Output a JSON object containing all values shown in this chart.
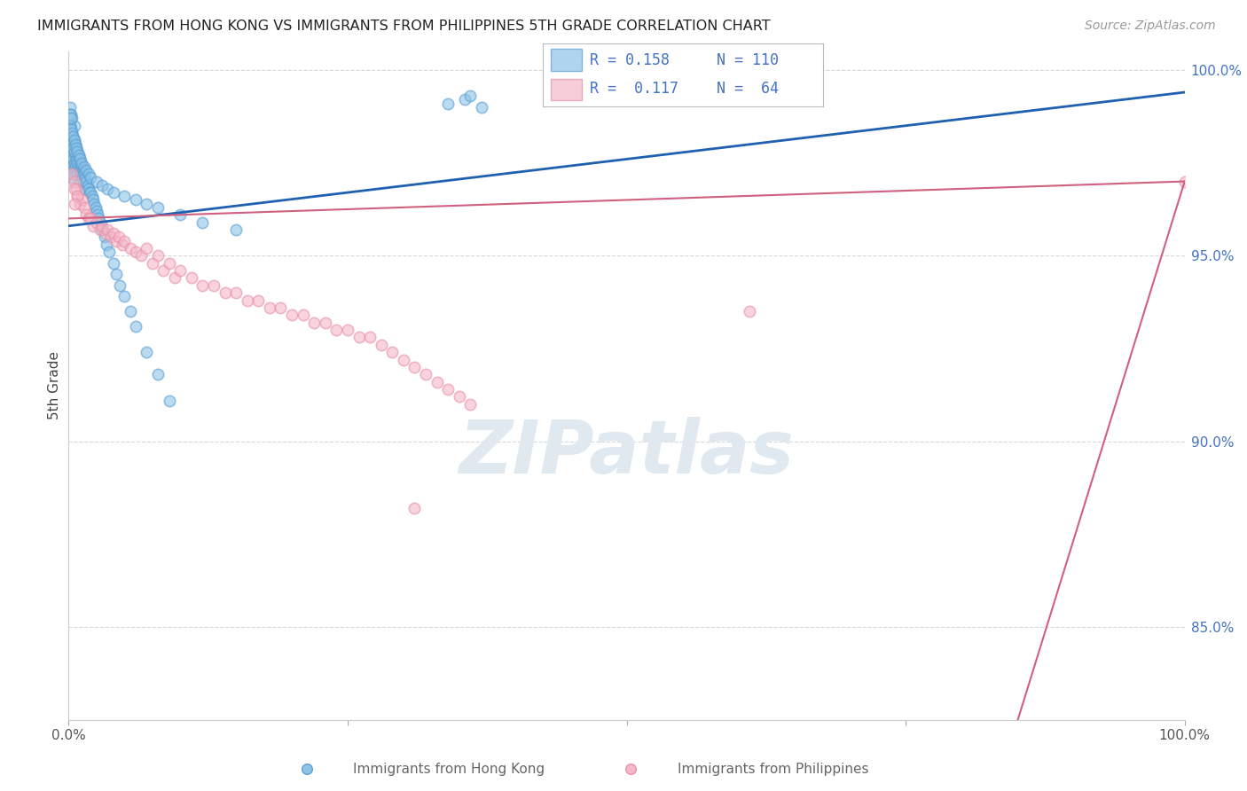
{
  "title": "IMMIGRANTS FROM HONG KONG VS IMMIGRANTS FROM PHILIPPINES 5TH GRADE CORRELATION CHART",
  "source": "Source: ZipAtlas.com",
  "ylabel": "5th Grade",
  "hk_color": "#8ec4e8",
  "ph_color": "#f5b8c8",
  "hk_edge_color": "#5a9fd4",
  "ph_edge_color": "#e890a8",
  "hk_line_color": "#2060b0",
  "ph_line_color": "#d06080",
  "right_axis_color": "#4472c4",
  "grid_color": "#d8d8d8",
  "title_color": "#222222",
  "source_color": "#999999",
  "legend_text_color": "#4472c4",
  "bottom_label_color": "#666666",
  "watermark_color": "#e0e8f0",
  "watermark_text": "ZIPatlas",
  "legend_label1": "Immigrants from Hong Kong",
  "legend_label2": "Immigrants from Philippines",
  "hk_r": "0.158",
  "hk_n": "110",
  "ph_r": "0.117",
  "ph_n": "64",
  "xlim": [
    0.0,
    1.0
  ],
  "ylim": [
    0.825,
    1.005
  ],
  "yticks": [
    0.85,
    0.9,
    0.95,
    1.0
  ],
  "ytick_labels": [
    "85.0%",
    "90.0%",
    "95.0%",
    "100.0%"
  ],
  "hk_line_x0": 0.0,
  "hk_line_x1": 1.0,
  "hk_line_y0": 0.958,
  "hk_line_y1": 0.994,
  "ph_line_x0": 0.0,
  "ph_line_x1": 1.0,
  "ph_line_y0": 0.96,
  "ph_line_y1": 0.97,
  "hk_scatter_x": [
    0.001,
    0.001,
    0.001,
    0.001,
    0.001,
    0.002,
    0.002,
    0.002,
    0.002,
    0.002,
    0.003,
    0.003,
    0.003,
    0.003,
    0.003,
    0.003,
    0.004,
    0.004,
    0.004,
    0.004,
    0.005,
    0.005,
    0.005,
    0.005,
    0.005,
    0.006,
    0.006,
    0.006,
    0.007,
    0.007,
    0.007,
    0.008,
    0.008,
    0.008,
    0.009,
    0.009,
    0.01,
    0.01,
    0.01,
    0.011,
    0.011,
    0.012,
    0.012,
    0.013,
    0.013,
    0.014,
    0.015,
    0.015,
    0.016,
    0.017,
    0.018,
    0.019,
    0.02,
    0.021,
    0.022,
    0.023,
    0.024,
    0.025,
    0.026,
    0.027,
    0.028,
    0.03,
    0.032,
    0.034,
    0.036,
    0.04,
    0.043,
    0.046,
    0.05,
    0.055,
    0.06,
    0.07,
    0.08,
    0.09,
    0.001,
    0.001,
    0.002,
    0.002,
    0.002,
    0.003,
    0.003,
    0.004,
    0.004,
    0.005,
    0.005,
    0.006,
    0.007,
    0.008,
    0.009,
    0.01,
    0.012,
    0.014,
    0.016,
    0.018,
    0.02,
    0.025,
    0.03,
    0.035,
    0.04,
    0.05,
    0.06,
    0.07,
    0.08,
    0.1,
    0.12,
    0.15,
    0.34,
    0.355,
    0.36,
    0.37
  ],
  "hk_scatter_y": [
    0.985,
    0.982,
    0.979,
    0.976,
    0.99,
    0.984,
    0.981,
    0.978,
    0.975,
    0.988,
    0.983,
    0.98,
    0.977,
    0.974,
    0.971,
    0.987,
    0.982,
    0.979,
    0.976,
    0.973,
    0.981,
    0.978,
    0.975,
    0.972,
    0.985,
    0.98,
    0.977,
    0.974,
    0.979,
    0.976,
    0.973,
    0.978,
    0.975,
    0.972,
    0.977,
    0.974,
    0.976,
    0.973,
    0.97,
    0.975,
    0.972,
    0.974,
    0.971,
    0.973,
    0.97,
    0.972,
    0.971,
    0.968,
    0.97,
    0.969,
    0.968,
    0.967,
    0.967,
    0.966,
    0.965,
    0.964,
    0.963,
    0.962,
    0.961,
    0.96,
    0.959,
    0.957,
    0.955,
    0.953,
    0.951,
    0.948,
    0.945,
    0.942,
    0.939,
    0.935,
    0.931,
    0.924,
    0.918,
    0.911,
    0.988,
    0.985,
    0.987,
    0.984,
    0.981,
    0.983,
    0.98,
    0.982,
    0.979,
    0.981,
    0.978,
    0.98,
    0.979,
    0.978,
    0.977,
    0.976,
    0.975,
    0.974,
    0.973,
    0.972,
    0.971,
    0.97,
    0.969,
    0.968,
    0.967,
    0.966,
    0.965,
    0.964,
    0.963,
    0.961,
    0.959,
    0.957,
    0.991,
    0.992,
    0.993,
    0.99
  ],
  "ph_scatter_x": [
    0.003,
    0.005,
    0.007,
    0.008,
    0.01,
    0.012,
    0.014,
    0.016,
    0.018,
    0.02,
    0.022,
    0.025,
    0.028,
    0.03,
    0.033,
    0.035,
    0.038,
    0.04,
    0.043,
    0.045,
    0.048,
    0.05,
    0.055,
    0.06,
    0.065,
    0.07,
    0.075,
    0.08,
    0.085,
    0.09,
    0.095,
    0.1,
    0.11,
    0.12,
    0.13,
    0.14,
    0.15,
    0.16,
    0.17,
    0.18,
    0.19,
    0.2,
    0.21,
    0.22,
    0.23,
    0.24,
    0.25,
    0.26,
    0.27,
    0.28,
    0.29,
    0.3,
    0.31,
    0.32,
    0.33,
    0.34,
    0.35,
    0.36,
    0.61,
    0.005,
    0.008,
    0.31,
    0.005,
    1.0
  ],
  "ph_scatter_y": [
    0.972,
    0.97,
    0.968,
    0.966,
    0.964,
    0.965,
    0.963,
    0.961,
    0.96,
    0.96,
    0.958,
    0.959,
    0.957,
    0.958,
    0.956,
    0.957,
    0.955,
    0.956,
    0.954,
    0.955,
    0.953,
    0.954,
    0.952,
    0.951,
    0.95,
    0.952,
    0.948,
    0.95,
    0.946,
    0.948,
    0.944,
    0.946,
    0.944,
    0.942,
    0.942,
    0.94,
    0.94,
    0.938,
    0.938,
    0.936,
    0.936,
    0.934,
    0.934,
    0.932,
    0.932,
    0.93,
    0.93,
    0.928,
    0.928,
    0.926,
    0.924,
    0.922,
    0.92,
    0.918,
    0.916,
    0.914,
    0.912,
    0.91,
    0.935,
    0.968,
    0.966,
    0.882,
    0.964,
    0.97
  ]
}
